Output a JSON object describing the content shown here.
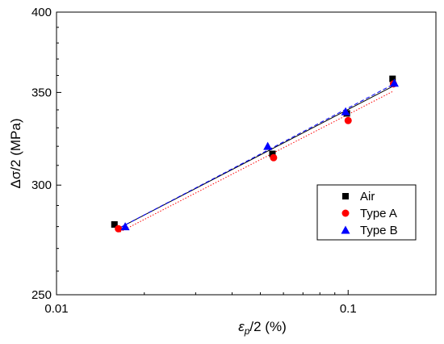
{
  "chart_data": {
    "type": "scatter",
    "title": "",
    "xlabel": "ε_p/2 (%)",
    "xlabel_main": "ε",
    "xlabel_sub": "p",
    "xlabel_rest": "/2 (%)",
    "ylabel": "Δσ/2 (MPa)",
    "x_scale": "log",
    "y_scale": "log",
    "xlim": [
      0.01,
      0.2
    ],
    "ylim": [
      250,
      400
    ],
    "x_ticks": [
      0.01,
      0.1
    ],
    "x_tick_labels": [
      "0.01",
      "0.1"
    ],
    "y_ticks": [
      250,
      300,
      350,
      400
    ],
    "y_tick_labels": [
      "250",
      "300",
      "350",
      "400"
    ],
    "grid": false,
    "legend_position": "right",
    "series": [
      {
        "name": "Air",
        "marker": "square",
        "color": "#000000",
        "line_color": "#000000",
        "line_style": "solid",
        "x": [
          0.0158,
          0.055,
          0.099,
          0.142
        ],
        "y": [
          281,
          316,
          338,
          358
        ],
        "fit": {
          "x": [
            0.0165,
            0.142
          ],
          "y": [
            279.5,
            353.5
          ]
        }
      },
      {
        "name": "Type A",
        "marker": "circle",
        "color": "#ff0000",
        "line_color": "#ff0000",
        "line_style": "dotted",
        "x": [
          0.0163,
          0.0555,
          0.1,
          0.143
        ],
        "y": [
          279,
          314,
          334,
          355
        ],
        "fit": {
          "x": [
            0.0165,
            0.142
          ],
          "y": [
            277.5,
            350.5
          ]
        }
      },
      {
        "name": "Type B",
        "marker": "triangle",
        "color": "#0000ff",
        "line_color": "#0000ff",
        "line_style": "dashed",
        "x": [
          0.0172,
          0.053,
          0.098,
          0.144
        ],
        "y": [
          280,
          320,
          339,
          355.5
        ],
        "fit": {
          "x": [
            0.0165,
            0.142
          ],
          "y": [
            279.5,
            354.5
          ]
        }
      }
    ]
  }
}
